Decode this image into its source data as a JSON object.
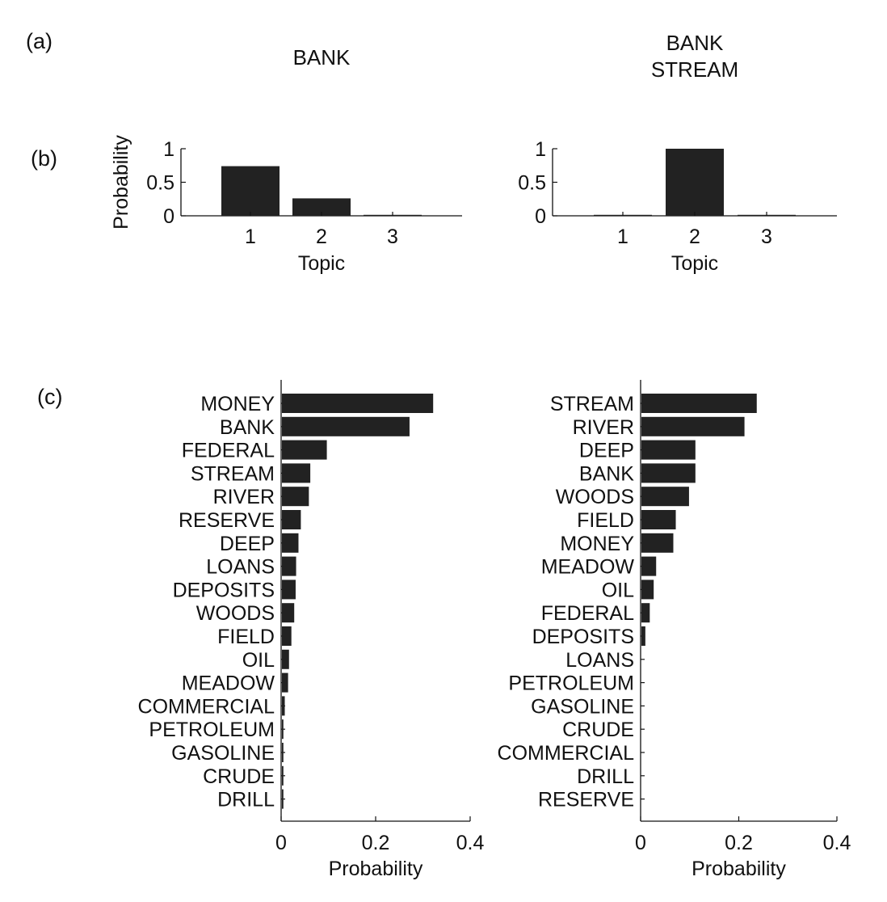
{
  "panel_labels": {
    "a": "(a)",
    "b": "(b)",
    "c": "(c)"
  },
  "contexts": [
    {
      "title_lines": [
        "BANK"
      ]
    },
    {
      "title_lines": [
        "BANK",
        "STREAM"
      ]
    }
  ],
  "colors": {
    "bar": "#222222",
    "axis": "#111111"
  },
  "chart_data": [
    {
      "type": "bar",
      "panel": "b-left",
      "categories": [
        "1",
        "2",
        "3"
      ],
      "values": [
        0.74,
        0.26,
        0.01
      ],
      "xlabel": "Topic",
      "ylabel": "Probability",
      "ylim": [
        0,
        1
      ],
      "yticks": [
        "0",
        "0.5",
        "1"
      ]
    },
    {
      "type": "bar",
      "panel": "b-right",
      "categories": [
        "1",
        "2",
        "3"
      ],
      "values": [
        0.0,
        1.0,
        0.0
      ],
      "xlabel": "Topic",
      "ylabel": "",
      "ylim": [
        0,
        1
      ],
      "yticks": [
        "0",
        "0.5",
        "1"
      ]
    },
    {
      "type": "bar",
      "orientation": "horizontal",
      "panel": "c-left",
      "categories": [
        "MONEY",
        "BANK",
        "FEDERAL",
        "STREAM",
        "RIVER",
        "RESERVE",
        "DEEP",
        "LOANS",
        "DEPOSITS",
        "WOODS",
        "FIELD",
        "OIL",
        "MEADOW",
        "COMMERCIAL",
        "PETROLEUM",
        "GASOLINE",
        "CRUDE",
        "DRILL"
      ],
      "values": [
        0.32,
        0.27,
        0.095,
        0.06,
        0.057,
        0.04,
        0.035,
        0.03,
        0.029,
        0.026,
        0.02,
        0.015,
        0.013,
        0.006,
        0.001,
        0.001,
        0.001,
        0.001
      ],
      "xlabel": "Probability",
      "xlim": [
        0,
        0.4
      ],
      "xticks": [
        "0",
        "0.2",
        "0.4"
      ]
    },
    {
      "type": "bar",
      "orientation": "horizontal",
      "panel": "c-right",
      "categories": [
        "STREAM",
        "RIVER",
        "DEEP",
        "BANK",
        "WOODS",
        "FIELD",
        "MONEY",
        "MEADOW",
        "OIL",
        "FEDERAL",
        "DEPOSITS",
        "LOANS",
        "PETROLEUM",
        "GASOLINE",
        "CRUDE",
        "COMMERCIAL",
        "DRILL",
        "RESERVE"
      ],
      "values": [
        0.235,
        0.21,
        0.11,
        0.11,
        0.097,
        0.07,
        0.065,
        0.03,
        0.025,
        0.017,
        0.008,
        0.0,
        0.0,
        0.0,
        0.0,
        0.0,
        0.0,
        0.0
      ],
      "xlabel": "Probability",
      "xlim": [
        0,
        0.4
      ],
      "xticks": [
        "0",
        "0.2",
        "0.4"
      ]
    }
  ]
}
